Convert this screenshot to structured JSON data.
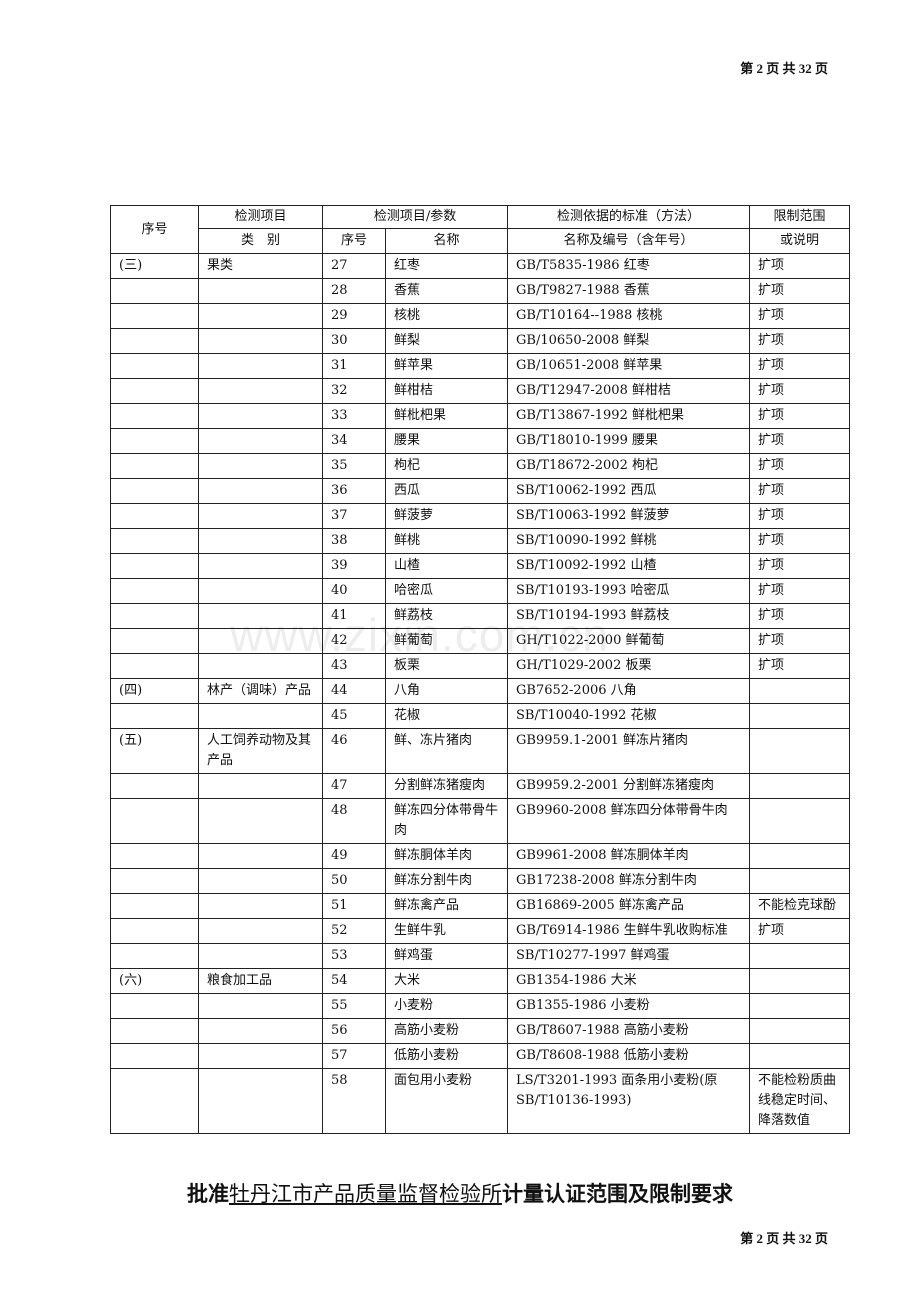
{
  "page_number": "第 2 页 共 32 页",
  "watermark": "www.zixin.com.cn",
  "header": {
    "seq": "序号",
    "item": "检测项目",
    "category": "类　别",
    "param": "检测项目/参数",
    "param_no": "序号",
    "param_name": "名称",
    "standard": "检测依据的标准（方法）",
    "standard_sub": "名称及编号（含年号）",
    "limit": "限制范围",
    "limit_sub": "或说明"
  },
  "rows": [
    [
      "(三)",
      "果类",
      "27",
      "红枣",
      "GB/T5835-1986 红枣",
      "扩项"
    ],
    [
      "",
      "",
      "28",
      "香蕉",
      "GB/T9827-1988 香蕉",
      "扩项"
    ],
    [
      "",
      "",
      "29",
      "核桃",
      "GB/T10164--1988 核桃",
      "扩项"
    ],
    [
      "",
      "",
      "30",
      "鲜梨",
      "GB/10650-2008 鲜梨",
      "扩项"
    ],
    [
      "",
      "",
      "31",
      "鲜苹果",
      "GB/10651-2008 鲜苹果",
      "扩项"
    ],
    [
      "",
      "",
      "32",
      "鲜柑桔",
      "GB/T12947-2008 鲜柑桔",
      "扩项"
    ],
    [
      "",
      "",
      "33",
      "鲜枇杷果",
      "GB/T13867-1992 鲜枇杷果",
      "扩项"
    ],
    [
      "",
      "",
      "34",
      "腰果",
      "GB/T18010-1999 腰果",
      "扩项"
    ],
    [
      "",
      "",
      "35",
      "枸杞",
      "GB/T18672-2002 枸杞",
      "扩项"
    ],
    [
      "",
      "",
      "36",
      "西瓜",
      "SB/T10062-1992 西瓜",
      "扩项"
    ],
    [
      "",
      "",
      "37",
      "鲜菠萝",
      "SB/T10063-1992 鲜菠萝",
      "扩项"
    ],
    [
      "",
      "",
      "38",
      "鲜桃",
      "SB/T10090-1992 鲜桃",
      "扩项"
    ],
    [
      "",
      "",
      "39",
      "山楂",
      "SB/T10092-1992 山楂",
      "扩项"
    ],
    [
      "",
      "",
      "40",
      "哈密瓜",
      "SB/T10193-1993 哈密瓜",
      "扩项"
    ],
    [
      "",
      "",
      "41",
      "鲜荔枝",
      "SB/T10194-1993 鲜荔枝",
      "扩项"
    ],
    [
      "",
      "",
      "42",
      "鲜葡萄",
      "GH/T1022-2000 鲜葡萄",
      "扩项"
    ],
    [
      "",
      "",
      "43",
      "板栗",
      "GH/T1029-2002 板栗",
      "扩项"
    ],
    [
      "(四)",
      "林产（调味）产品",
      "44",
      "八角",
      "GB7652-2006 八角",
      ""
    ],
    [
      "",
      "",
      "45",
      "花椒",
      "SB/T10040-1992 花椒",
      ""
    ],
    [
      "(五)",
      "人工饲养动物及其产品",
      "46",
      "鲜、冻片猪肉",
      "GB9959.1-2001 鲜冻片猪肉",
      ""
    ],
    [
      "",
      "",
      "47",
      "分割鲜冻猪瘦肉",
      "GB9959.2-2001 分割鲜冻猪瘦肉",
      ""
    ],
    [
      "",
      "",
      "48",
      "鲜冻四分体带骨牛肉",
      "GB9960-2008 鲜冻四分体带骨牛肉",
      ""
    ],
    [
      "",
      "",
      "49",
      "鲜冻胴体羊肉",
      "GB9961-2008 鲜冻胴体羊肉",
      ""
    ],
    [
      "",
      "",
      "50",
      "鲜冻分割牛肉",
      "GB17238-2008 鲜冻分割牛肉",
      ""
    ],
    [
      "",
      "",
      "51",
      "鲜冻禽产品",
      "GB16869-2005 鲜冻禽产品",
      "不能检克球酚"
    ],
    [
      "",
      "",
      "52",
      "生鲜牛乳",
      "GB/T6914-1986 生鲜牛乳收购标准",
      "扩项"
    ],
    [
      "",
      "",
      "53",
      "鲜鸡蛋",
      "SB/T10277-1997 鲜鸡蛋",
      ""
    ],
    [
      "(六)",
      "粮食加工品",
      "54",
      "大米",
      "GB1354-1986 大米",
      ""
    ],
    [
      "",
      "",
      "55",
      "小麦粉",
      "GB1355-1986 小麦粉",
      ""
    ],
    [
      "",
      "",
      "56",
      "高筋小麦粉",
      "GB/T8607-1988 高筋小麦粉",
      ""
    ],
    [
      "",
      "",
      "57",
      "低筋小麦粉",
      "GB/T8608-1988 低筋小麦粉",
      ""
    ],
    [
      "",
      "",
      "58",
      "面包用小麦粉",
      "LS/T3201-1993 面条用小麦粉(原SB/T10136-1993)",
      "不能检粉质曲线稳定时间、降落数值"
    ]
  ],
  "title": {
    "pre": "批准",
    "org": "牡丹江市产品质量监督检验所",
    "post": "计量认证范围及限制要求"
  }
}
